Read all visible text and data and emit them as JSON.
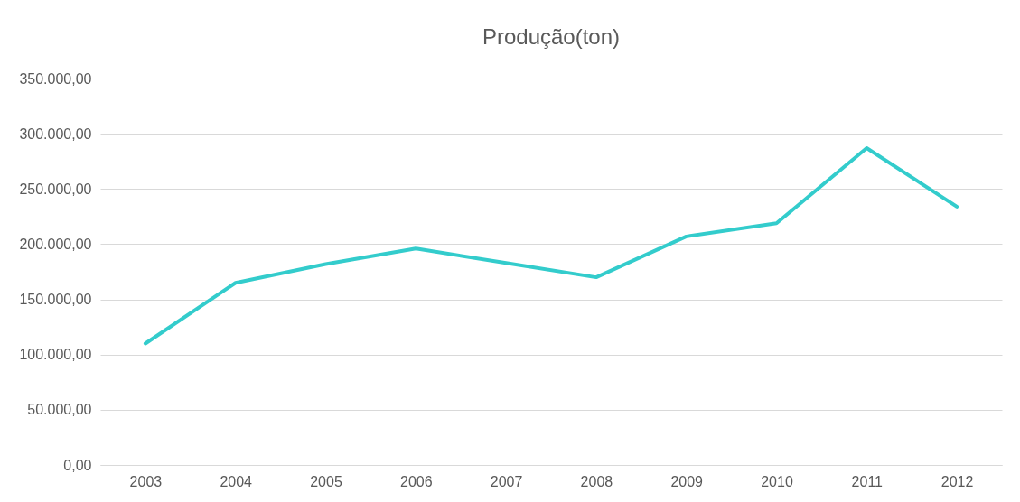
{
  "chart_data": {
    "type": "line",
    "title": "Produção(ton)",
    "categories": [
      "2003",
      "2004",
      "2005",
      "2006",
      "2007",
      "2008",
      "2009",
      "2010",
      "2011",
      "2012"
    ],
    "series": [
      {
        "color": "#33cccc",
        "values": [
          110000,
          165000,
          182000,
          196000,
          183000,
          170000,
          207000,
          219000,
          287000,
          234000
        ]
      }
    ],
    "ylim": [
      0,
      350000
    ],
    "yticks": [
      {
        "value": 0,
        "label": "0,00"
      },
      {
        "value": 50000,
        "label": "50.000,00"
      },
      {
        "value": 100000,
        "label": "100.000,00"
      },
      {
        "value": 150000,
        "label": "150.000,00"
      },
      {
        "value": 200000,
        "label": "200.000,00"
      },
      {
        "value": 250000,
        "label": "250.000,00"
      },
      {
        "value": 300000,
        "label": "300.000,00"
      },
      {
        "value": 350000,
        "label": "350.000,00"
      }
    ],
    "grid": "y",
    "marker": "none",
    "line_style": "solid"
  }
}
